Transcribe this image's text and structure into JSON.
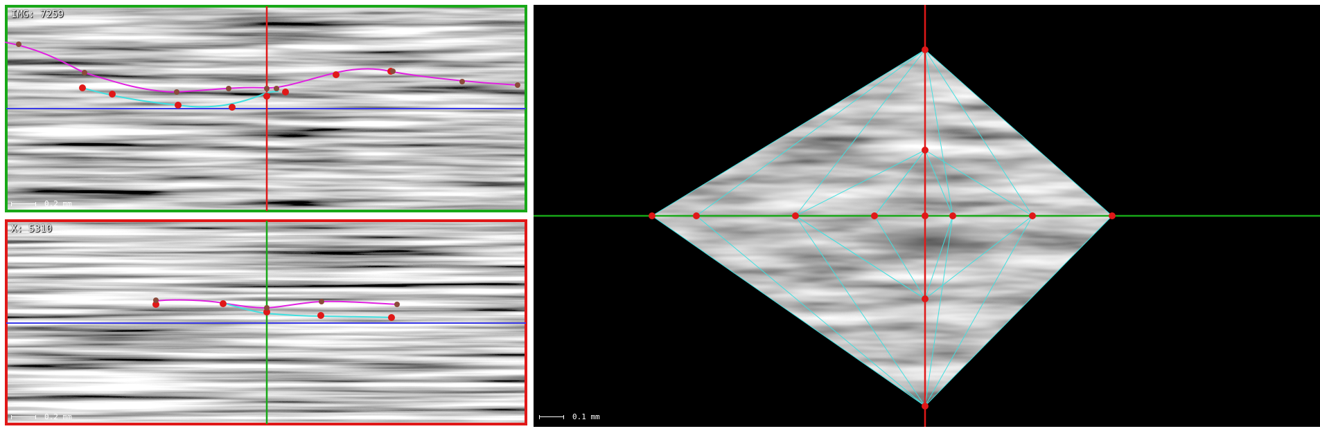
{
  "views": {
    "top": {
      "label": "IMG: 7259",
      "scale": "0.2 mm",
      "border_color": "#18a818"
    },
    "bottom": {
      "label": "X: 5310",
      "scale": "0.2 mm",
      "border_color": "#e01818"
    },
    "right": {
      "scale": "0.1 mm"
    }
  },
  "colors": {
    "magenta_curve": "#e020e0",
    "cyan_curve": "#40e0e0",
    "control_point": "#e01818",
    "brown_point": "#8b4a3a",
    "horizontal_guide": "#3838e8",
    "vertical_guide_red": "#e01818",
    "vertical_guide_green": "#18a818",
    "mesh_lines": "#40e0e0"
  }
}
